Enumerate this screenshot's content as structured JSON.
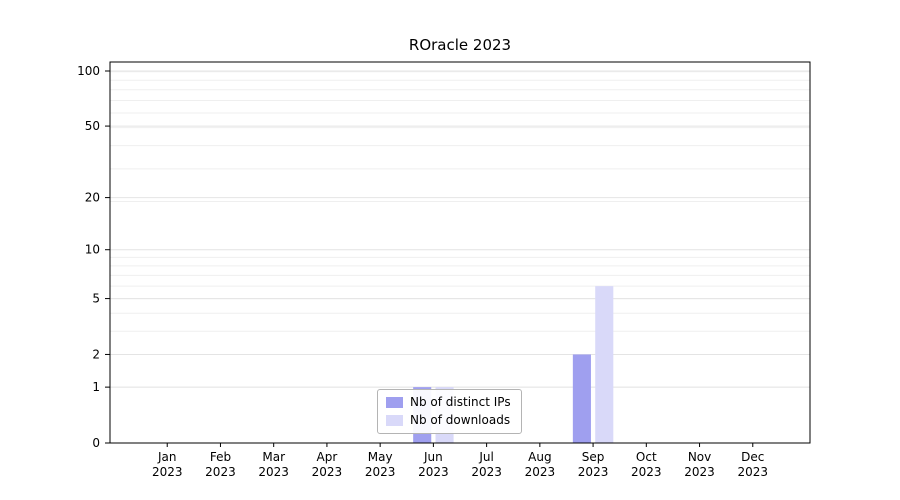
{
  "figure": {
    "title": "ROracle 2023",
    "background": "#ffffff"
  },
  "chart_data": {
    "type": "bar",
    "title": "ROracle 2023",
    "x_ticks": [
      {
        "line1": "Jan",
        "line2": "2023"
      },
      {
        "line1": "Feb",
        "line2": "2023"
      },
      {
        "line1": "Mar",
        "line2": "2023"
      },
      {
        "line1": "Apr",
        "line2": "2023"
      },
      {
        "line1": "May",
        "line2": "2023"
      },
      {
        "line1": "Jun",
        "line2": "2023"
      },
      {
        "line1": "Jul",
        "line2": "2023"
      },
      {
        "line1": "Aug",
        "line2": "2023"
      },
      {
        "line1": "Sep",
        "line2": "2023"
      },
      {
        "line1": "Oct",
        "line2": "2023"
      },
      {
        "line1": "Nov",
        "line2": "2023"
      },
      {
        "line1": "Dec",
        "line2": "2023"
      }
    ],
    "series": [
      {
        "name": "Nb of distinct IPs",
        "color": "#9f9fef",
        "values": [
          0,
          0,
          0,
          0,
          0,
          1,
          0,
          0,
          2,
          0,
          0,
          0
        ]
      },
      {
        "name": "Nb of downloads",
        "color": "#d9d9f9",
        "values": [
          0,
          0,
          0,
          0,
          0,
          1,
          0,
          0,
          6,
          0,
          0,
          0
        ]
      }
    ],
    "y_ticks": [
      0,
      1,
      2,
      5,
      10,
      20,
      50,
      100
    ],
    "y_scale": "log1p",
    "ylim": [
      0,
      113
    ],
    "xlabel": "",
    "ylabel": "",
    "grid": true,
    "legend_position": "lower center",
    "colors": {
      "axis": "#000000",
      "grid_major": "#e4e4e4",
      "grid_minor": "#efefef",
      "text": "#000000"
    }
  }
}
